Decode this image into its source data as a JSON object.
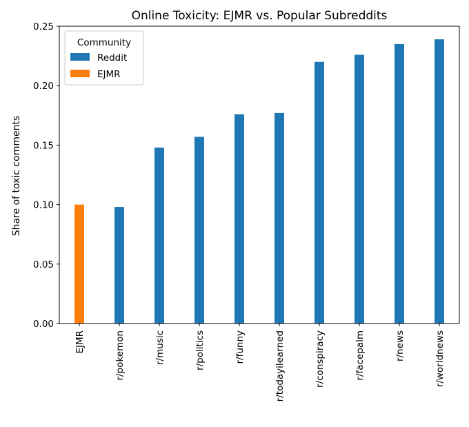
{
  "chart_data": {
    "type": "bar",
    "title": "Online Toxicity: EJMR vs. Popular Subreddits",
    "xlabel": "",
    "ylabel": "Share of toxic comments",
    "ylim": [
      0,
      0.25
    ],
    "yticks": [
      "0.00",
      "0.05",
      "0.10",
      "0.15",
      "0.20",
      "0.25"
    ],
    "categories": [
      "EJMR",
      "r/pokemon",
      "r/music",
      "r/politics",
      "r/funny",
      "r/todayilearned",
      "r/conspiracy",
      "r/facepalm",
      "r/news",
      "r/worldnews"
    ],
    "series": [
      {
        "name": "Reddit",
        "color": "#1f77b4",
        "values": [
          null,
          0.098,
          0.148,
          0.157,
          0.176,
          0.177,
          0.22,
          0.226,
          0.235,
          0.239
        ]
      },
      {
        "name": "EJMR",
        "color": "#ff7f0e",
        "values": [
          0.1,
          null,
          null,
          null,
          null,
          null,
          null,
          null,
          null,
          null
        ]
      }
    ],
    "legend": {
      "title": "Community",
      "placement": "top-left"
    },
    "grid": false
  }
}
